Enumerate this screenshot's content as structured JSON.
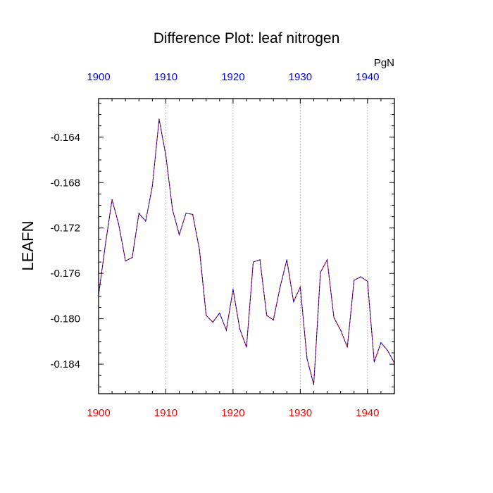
{
  "chart_data": {
    "type": "line",
    "title": "Difference Plot: leaf nitrogen",
    "units_label": "PgN",
    "ylabel": "LEAFN",
    "xlabel": "",
    "xlim": [
      1900,
      1944
    ],
    "ylim": [
      -0.1866,
      -0.1606
    ],
    "x_ticks": [
      "1900",
      "1910",
      "1920",
      "1930",
      "1940"
    ],
    "x_tick_values": [
      1900,
      1910,
      1920,
      1930,
      1940
    ],
    "y_ticks": [
      "-0.164",
      "-0.168",
      "-0.172",
      "-0.176",
      "-0.180",
      "-0.184"
    ],
    "y_tick_values": [
      -0.164,
      -0.168,
      -0.172,
      -0.176,
      -0.18,
      -0.184
    ],
    "top_tick_color": "#0000ff",
    "bottom_tick_color": "#ff0000",
    "grid": "vertical dashed at major x ticks",
    "series": [
      {
        "color": "#0000cc",
        "overlay_color": "#cc0000",
        "style": "dashed",
        "x": [
          1900,
          1901,
          1902,
          1903,
          1904,
          1905,
          1906,
          1907,
          1908,
          1909,
          1910,
          1911,
          1912,
          1913,
          1914,
          1915,
          1916,
          1917,
          1918,
          1919,
          1920,
          1921,
          1922,
          1923,
          1924,
          1925,
          1926,
          1927,
          1928,
          1929,
          1930,
          1931,
          1932,
          1933,
          1934,
          1935,
          1936,
          1937,
          1938,
          1939,
          1940,
          1941,
          1942,
          1943,
          1944
        ],
        "values": [
          -0.1779,
          -0.1735,
          -0.1695,
          -0.1717,
          -0.1749,
          -0.1746,
          -0.1707,
          -0.1714,
          -0.1683,
          -0.1624,
          -0.1656,
          -0.1704,
          -0.1726,
          -0.1707,
          -0.1708,
          -0.1739,
          -0.1797,
          -0.1803,
          -0.1795,
          -0.181,
          -0.1774,
          -0.1809,
          -0.1825,
          -0.175,
          -0.1748,
          -0.1797,
          -0.1801,
          -0.1772,
          -0.1748,
          -0.1785,
          -0.1772,
          -0.1835,
          -0.1858,
          -0.1759,
          -0.1748,
          -0.1799,
          -0.181,
          -0.1825,
          -0.1766,
          -0.1763,
          -0.1767,
          -0.1838,
          -0.1821,
          -0.1828,
          -0.1839
        ]
      }
    ]
  }
}
